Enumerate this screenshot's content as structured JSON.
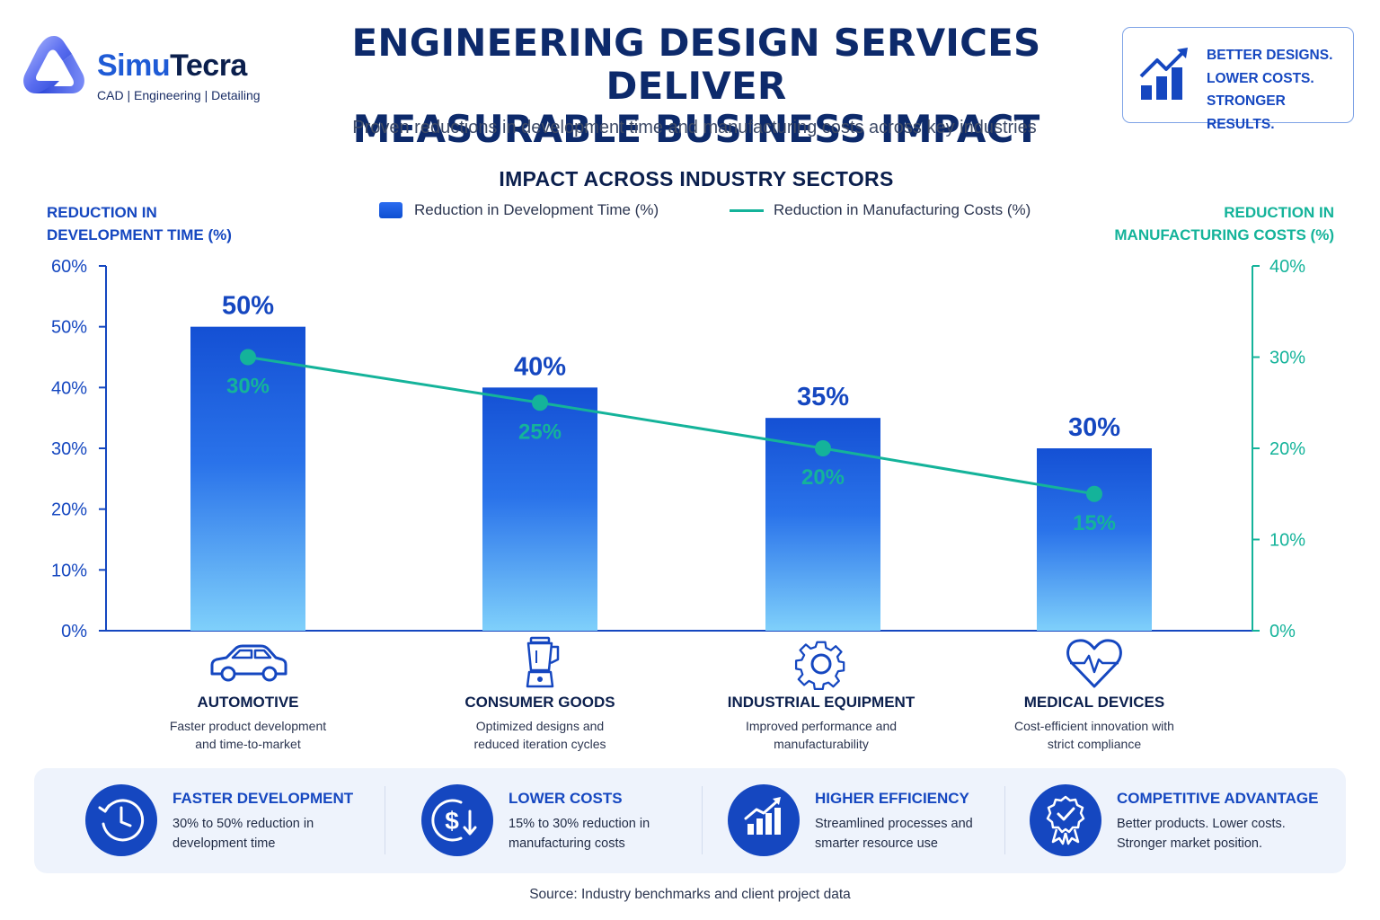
{
  "brand": {
    "name_part1": "Simu",
    "name_part2": "Tecra",
    "tagline": "CAD | Engineering | Detailing"
  },
  "header": {
    "title_line1": "ENGINEERING DESIGN SERVICES DELIVER",
    "title_line2": "MEASURABLE BUSINESS IMPACT",
    "subtitle": "Proven reductions in development time and manufacturing costs across key industries"
  },
  "badge": {
    "icon": "growth-chart-icon",
    "line1": "BETTER DESIGNS.",
    "line2": "LOWER COSTS.",
    "line3": "STRONGER RESULTS."
  },
  "chart_data": {
    "type": "bar",
    "title": "IMPACT ACROSS INDUSTRY SECTORS",
    "categories": [
      "AUTOMOTIVE",
      "CONSUMER GOODS",
      "INDUSTRIAL EQUIPMENT",
      "MEDICAL DEVICES"
    ],
    "series": [
      {
        "name": "Reduction in Development Time (%)",
        "type": "bar",
        "axis": "left",
        "values": [
          50,
          40,
          35,
          30
        ],
        "labels": [
          "50%",
          "40%",
          "35%",
          "30%"
        ],
        "color": "#1a56db"
      },
      {
        "name": "Reduction in Manufacturing Costs (%)",
        "type": "line",
        "axis": "right",
        "values": [
          30,
          25,
          20,
          15
        ],
        "labels": [
          "30%",
          "25%",
          "20%",
          "15%"
        ],
        "color": "#14b39a"
      }
    ],
    "ylabel_left_line1": "REDUCTION IN",
    "ylabel_left_line2": "DEVELOPMENT TIME (%)",
    "ylabel_right_line1": "REDUCTION IN",
    "ylabel_right_line2": "MANUFACTURING COSTS (%)",
    "ylim_left": [
      0,
      60
    ],
    "ylim_right": [
      0,
      40
    ],
    "yticks_left": [
      "0%",
      "10%",
      "20%",
      "30%",
      "40%",
      "50%",
      "60%"
    ],
    "yticks_right": [
      "0%",
      "10%",
      "20%",
      "30%",
      "40%"
    ],
    "legend_position": "top-center",
    "grid": false
  },
  "sectors": [
    {
      "icon": "car-icon",
      "name": "AUTOMOTIVE",
      "desc_line1": "Faster product development",
      "desc_line2": "and time-to-market"
    },
    {
      "icon": "blender-icon",
      "name": "CONSUMER GOODS",
      "desc_line1": "Optimized designs and",
      "desc_line2": "reduced iteration cycles"
    },
    {
      "icon": "gear-icon",
      "name": "INDUSTRIAL EQUIPMENT",
      "desc_line1": "Improved performance and",
      "desc_line2": "manufacturability"
    },
    {
      "icon": "heart-pulse-icon",
      "name": "MEDICAL DEVICES",
      "desc_line1": "Cost-efficient innovation with",
      "desc_line2": "strict compliance"
    }
  ],
  "benefits": [
    {
      "icon": "clock-icon",
      "title": "FASTER DEVELOPMENT",
      "desc_line1": "30% to 50% reduction in",
      "desc_line2": "development time"
    },
    {
      "icon": "dollar-down-icon",
      "title": "LOWER COSTS",
      "desc_line1": "15% to 30% reduction in",
      "desc_line2": "manufacturing costs"
    },
    {
      "icon": "bar-chart-up-icon",
      "title": "HIGHER EFFICIENCY",
      "desc_line1": "Streamlined processes and",
      "desc_line2": "smarter resource use"
    },
    {
      "icon": "award-badge-icon",
      "title": "COMPETITIVE ADVANTAGE",
      "desc_line1": "Better products. Lower costs.",
      "desc_line2": "Stronger market position."
    }
  ],
  "source": "Source: Industry benchmarks and client project data",
  "colors": {
    "primary": "#1547c0",
    "accent_teal": "#14b39a",
    "navy": "#0b1f4d",
    "panel_bg": "#eef3fc"
  }
}
